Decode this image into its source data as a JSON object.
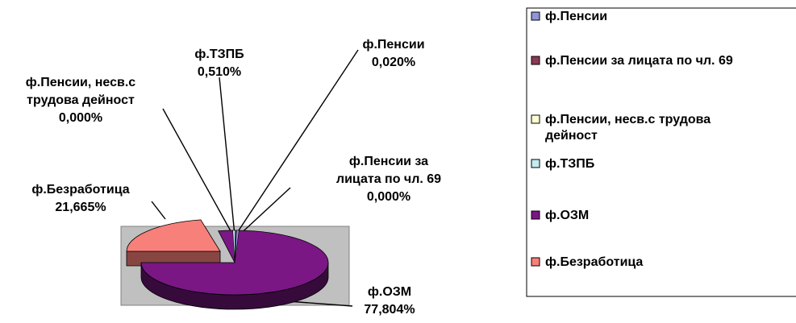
{
  "chart_data": {
    "type": "pie",
    "three_d": true,
    "slices": [
      {
        "name": "ф.Пенсии",
        "value": 0.02,
        "label_lines": [
          "ф.Пенсии",
          "0,020%"
        ],
        "color": "#8f96d8"
      },
      {
        "name": "ф.Пенсии за лицата по чл. 69",
        "value": 0.0,
        "label_lines": [
          "ф.Пенсии за",
          "лицата по чл. 69",
          "0,000%"
        ],
        "color": "#8b3a53"
      },
      {
        "name": "ф.Пенсии, несв.с трудова дейност",
        "value": 0.0,
        "label_lines": [
          "ф.Пенсии, несв.с",
          "трудова дейност",
          "0,000%"
        ],
        "color": "#fefed2"
      },
      {
        "name": "ф.ТЗПБ",
        "value": 0.51,
        "label_lines": [
          "ф.ТЗПБ",
          "0,510%"
        ],
        "color": "#c4ecf0"
      },
      {
        "name": "ф.ОЗМ",
        "value": 77.804,
        "label_lines": [
          "ф.ОЗМ",
          "77,804%"
        ],
        "color": "#7a1785"
      },
      {
        "name": "ф.Безработица",
        "value": 21.665,
        "label_lines": [
          "ф.Безработица",
          "21,665%"
        ],
        "color": "#f8807a"
      }
    ],
    "legend": {
      "position": "right",
      "items": [
        {
          "lines": [
            "ф.Пенсии"
          ],
          "color": "#8f96d8"
        },
        {
          "lines": [
            "ф.Пенсии за лицата по чл. 69"
          ],
          "color": "#8b3a53"
        },
        {
          "lines": [
            "ф.Пенсии, несв.с трудова",
            "дейност"
          ],
          "color": "#fefed2"
        },
        {
          "lines": [
            "ф.ТЗПБ"
          ],
          "color": "#c4ecf0"
        },
        {
          "lines": [
            "ф.ОЗМ"
          ],
          "color": "#7a1785"
        },
        {
          "lines": [
            "ф.Безработица"
          ],
          "color": "#f8807a"
        }
      ]
    },
    "plot_area_color": "#c0c0c0"
  }
}
